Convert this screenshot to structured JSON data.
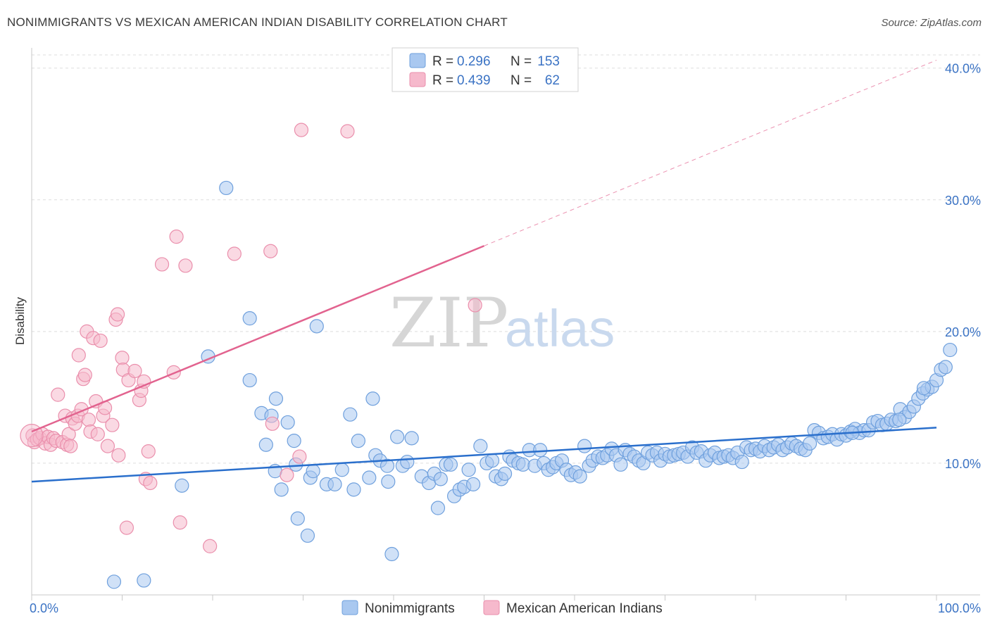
{
  "title": "NONIMMIGRANTS VS MEXICAN AMERICAN INDIAN DISABILITY CORRELATION CHART",
  "source": "Source: ZipAtlas.com",
  "watermark": {
    "zip": "ZIP",
    "atlas": "atlas"
  },
  "colors": {
    "blue_fill": "#a9c8f0",
    "blue_stroke": "#6fa0dd",
    "blue_line": "#2a6fcc",
    "pink_fill": "#f6b9cc",
    "pink_stroke": "#ea8fac",
    "pink_line": "#e2638f",
    "grid": "#dddddd",
    "axis": "#c8c8c8",
    "tick_text": "#3b73c4"
  },
  "legend": {
    "r_label": "R =",
    "n_label": "N =",
    "rows": [
      {
        "r": "0.296",
        "n": "153"
      },
      {
        "r": "0.439",
        "n": "62"
      }
    ]
  },
  "bottom_legend": [
    "Nonimmigrants",
    "Mexican American Indians"
  ],
  "chart_data": {
    "type": "scatter",
    "xlabel": "",
    "ylabel": "Disability",
    "xlim": [
      0,
      100
    ],
    "ylim": [
      0,
      41
    ],
    "x_tick_labels": [
      "0.0%",
      "100.0%"
    ],
    "y_ticks": [
      10,
      20,
      30,
      40
    ],
    "y_tick_labels": [
      "10.0%",
      "20.0%",
      "30.0%",
      "40.0%"
    ],
    "grid": true,
    "legend_position": "top-center",
    "series": [
      {
        "name": "Nonimmigrants",
        "trend": {
          "x0": 0,
          "y0": 8.6,
          "x1": 100,
          "y1": 12.7
        },
        "points": [
          [
            9.1,
            1.0
          ],
          [
            12.4,
            1.1
          ],
          [
            21.5,
            30.9
          ],
          [
            24.1,
            16.3
          ],
          [
            19.5,
            18.1
          ],
          [
            24.1,
            21.0
          ],
          [
            16.6,
            8.3
          ],
          [
            25.4,
            13.8
          ],
          [
            25.9,
            11.4
          ],
          [
            26.5,
            13.6
          ],
          [
            26.9,
            9.4
          ],
          [
            27.0,
            14.9
          ],
          [
            27.6,
            8.0
          ],
          [
            28.3,
            13.1
          ],
          [
            29.0,
            11.7
          ],
          [
            29.2,
            9.9
          ],
          [
            29.4,
            5.8
          ],
          [
            30.5,
            4.5
          ],
          [
            30.8,
            8.9
          ],
          [
            31.1,
            9.4
          ],
          [
            31.5,
            20.4
          ],
          [
            32.6,
            8.4
          ],
          [
            33.5,
            8.4
          ],
          [
            34.3,
            9.5
          ],
          [
            35.2,
            13.7
          ],
          [
            35.6,
            8.0
          ],
          [
            36.1,
            11.7
          ],
          [
            37.3,
            8.9
          ],
          [
            37.7,
            14.9
          ],
          [
            38.0,
            10.6
          ],
          [
            38.5,
            10.2
          ],
          [
            39.3,
            9.8
          ],
          [
            39.4,
            8.6
          ],
          [
            39.8,
            3.1
          ],
          [
            40.4,
            12.0
          ],
          [
            41.0,
            9.8
          ],
          [
            41.5,
            10.1
          ],
          [
            42.0,
            11.9
          ],
          [
            43.1,
            9.0
          ],
          [
            43.9,
            8.5
          ],
          [
            44.5,
            9.2
          ],
          [
            45.2,
            8.8
          ],
          [
            45.8,
            9.9
          ],
          [
            46.3,
            9.9
          ],
          [
            44.9,
            6.6
          ],
          [
            46.7,
            7.5
          ],
          [
            47.3,
            8.0
          ],
          [
            47.8,
            8.2
          ],
          [
            48.3,
            9.5
          ],
          [
            48.8,
            8.4
          ],
          [
            49.6,
            11.3
          ],
          [
            50.3,
            10.0
          ],
          [
            50.9,
            10.2
          ],
          [
            51.3,
            9.0
          ],
          [
            51.9,
            8.8
          ],
          [
            52.3,
            9.2
          ],
          [
            52.8,
            10.5
          ],
          [
            53.2,
            10.2
          ],
          [
            53.8,
            10.0
          ],
          [
            54.3,
            9.9
          ],
          [
            55.0,
            11.0
          ],
          [
            55.6,
            9.8
          ],
          [
            56.2,
            11.0
          ],
          [
            56.6,
            10.0
          ],
          [
            57.1,
            9.5
          ],
          [
            57.6,
            9.7
          ],
          [
            58.0,
            10.0
          ],
          [
            58.6,
            10.2
          ],
          [
            59.1,
            9.5
          ],
          [
            59.6,
            9.1
          ],
          [
            60.1,
            9.3
          ],
          [
            60.6,
            9.0
          ],
          [
            61.1,
            11.3
          ],
          [
            61.6,
            9.8
          ],
          [
            62.0,
            10.2
          ],
          [
            62.6,
            10.5
          ],
          [
            63.1,
            10.4
          ],
          [
            63.6,
            10.6
          ],
          [
            64.1,
            11.1
          ],
          [
            64.6,
            10.6
          ],
          [
            65.1,
            9.9
          ],
          [
            65.6,
            11.0
          ],
          [
            66.1,
            10.7
          ],
          [
            66.6,
            10.5
          ],
          [
            67.1,
            10.2
          ],
          [
            67.6,
            10.0
          ],
          [
            68.1,
            10.8
          ],
          [
            68.6,
            10.6
          ],
          [
            69.1,
            10.8
          ],
          [
            69.5,
            10.2
          ],
          [
            70.0,
            10.7
          ],
          [
            70.5,
            10.5
          ],
          [
            71.0,
            10.6
          ],
          [
            71.5,
            10.7
          ],
          [
            72.0,
            10.8
          ],
          [
            72.5,
            10.5
          ],
          [
            73.0,
            11.2
          ],
          [
            73.5,
            10.8
          ],
          [
            74.0,
            10.9
          ],
          [
            74.5,
            10.2
          ],
          [
            75.0,
            10.6
          ],
          [
            75.5,
            10.8
          ],
          [
            76.0,
            10.4
          ],
          [
            76.5,
            10.5
          ],
          [
            77.0,
            10.6
          ],
          [
            77.5,
            10.4
          ],
          [
            78.0,
            10.8
          ],
          [
            78.5,
            10.1
          ],
          [
            79.0,
            11.2
          ],
          [
            79.5,
            11.0
          ],
          [
            80.0,
            11.1
          ],
          [
            80.5,
            10.9
          ],
          [
            81.0,
            11.3
          ],
          [
            81.5,
            11.0
          ],
          [
            82.0,
            11.2
          ],
          [
            82.5,
            11.4
          ],
          [
            83.0,
            11.0
          ],
          [
            83.5,
            11.2
          ],
          [
            84.0,
            11.5
          ],
          [
            84.5,
            11.3
          ],
          [
            85.0,
            11.1
          ],
          [
            85.5,
            11.0
          ],
          [
            86.0,
            11.5
          ],
          [
            86.5,
            12.5
          ],
          [
            87.0,
            12.3
          ],
          [
            87.5,
            11.9
          ],
          [
            88.0,
            12.0
          ],
          [
            88.5,
            12.2
          ],
          [
            89.0,
            11.8
          ],
          [
            89.5,
            12.2
          ],
          [
            90.0,
            12.1
          ],
          [
            90.5,
            12.4
          ],
          [
            91.0,
            12.6
          ],
          [
            91.5,
            12.3
          ],
          [
            92.0,
            12.5
          ],
          [
            92.5,
            12.5
          ],
          [
            93.0,
            13.1
          ],
          [
            93.5,
            13.2
          ],
          [
            94.0,
            12.9
          ],
          [
            94.5,
            13.0
          ],
          [
            95.0,
            13.3
          ],
          [
            95.5,
            13.2
          ],
          [
            96.0,
            14.1
          ],
          [
            96.5,
            13.5
          ],
          [
            97.0,
            13.9
          ],
          [
            97.5,
            14.3
          ],
          [
            98.0,
            14.9
          ],
          [
            98.5,
            15.3
          ],
          [
            99.0,
            15.6
          ],
          [
            99.5,
            15.8
          ],
          [
            100.0,
            16.3
          ],
          [
            100.5,
            17.1
          ],
          [
            101.0,
            17.3
          ],
          [
            101.5,
            18.6
          ],
          [
            98.6,
            15.7
          ],
          [
            95.9,
            13.3
          ],
          [
            90.7,
            12.3
          ]
        ]
      },
      {
        "name": "Mexican American Indians",
        "trend": {
          "x0": 0,
          "y0": 12.4,
          "x1": 50,
          "y1": 26.5,
          "extend_to_x": 100,
          "extend_to_y": 40.6
        },
        "points": [
          [
            0.1,
            12.1
          ],
          [
            0.3,
            11.6
          ],
          [
            0.6,
            11.8
          ],
          [
            0.9,
            11.9
          ],
          [
            1.2,
            12.2
          ],
          [
            1.5,
            11.5
          ],
          [
            1.8,
            12.0
          ],
          [
            2.1,
            11.4
          ],
          [
            2.4,
            11.9
          ],
          [
            2.7,
            11.7
          ],
          [
            2.9,
            15.2
          ],
          [
            3.4,
            11.6
          ],
          [
            3.7,
            13.6
          ],
          [
            3.9,
            11.4
          ],
          [
            4.1,
            12.2
          ],
          [
            4.3,
            11.3
          ],
          [
            4.5,
            13.4
          ],
          [
            4.8,
            13.0
          ],
          [
            5.1,
            13.6
          ],
          [
            5.2,
            18.2
          ],
          [
            5.5,
            14.1
          ],
          [
            5.7,
            16.4
          ],
          [
            5.9,
            16.7
          ],
          [
            6.1,
            20.0
          ],
          [
            6.3,
            13.3
          ],
          [
            6.5,
            12.4
          ],
          [
            6.8,
            19.5
          ],
          [
            7.1,
            14.7
          ],
          [
            7.3,
            12.2
          ],
          [
            7.6,
            19.3
          ],
          [
            7.9,
            13.6
          ],
          [
            8.1,
            14.2
          ],
          [
            8.4,
            11.3
          ],
          [
            8.9,
            12.9
          ],
          [
            9.3,
            20.9
          ],
          [
            9.5,
            21.3
          ],
          [
            9.6,
            10.6
          ],
          [
            10.0,
            18.0
          ],
          [
            10.1,
            17.1
          ],
          [
            10.5,
            5.1
          ],
          [
            10.7,
            16.3
          ],
          [
            11.4,
            17.0
          ],
          [
            11.9,
            14.8
          ],
          [
            12.1,
            15.5
          ],
          [
            12.4,
            16.2
          ],
          [
            12.6,
            8.8
          ],
          [
            12.9,
            10.9
          ],
          [
            13.1,
            8.5
          ],
          [
            14.4,
            25.1
          ],
          [
            15.7,
            16.9
          ],
          [
            16.0,
            27.2
          ],
          [
            16.4,
            5.5
          ],
          [
            17.0,
            25.0
          ],
          [
            19.7,
            3.7
          ],
          [
            22.4,
            25.9
          ],
          [
            26.4,
            26.1
          ],
          [
            26.6,
            13.0
          ],
          [
            28.2,
            9.1
          ],
          [
            29.6,
            10.5
          ],
          [
            29.8,
            35.3
          ],
          [
            34.9,
            35.2
          ],
          [
            49.0,
            22.0
          ]
        ]
      }
    ]
  }
}
